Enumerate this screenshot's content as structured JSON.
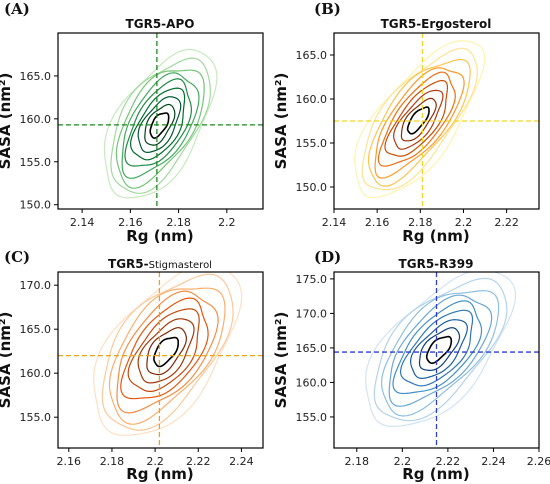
{
  "chart_data": [
    {
      "type": "contour",
      "panel_label": "(A)",
      "title": "TGR5-APO",
      "xlabel": "Rg (nm)",
      "ylabel": "SASA (nm²)",
      "xlim": [
        2.13,
        2.215
      ],
      "ylim": [
        149.5,
        170.0
      ],
      "xticks": [
        2.14,
        2.16,
        2.18,
        2.2
      ],
      "xtick_labels": [
        "2.14",
        "2.16",
        "2.18",
        "2.2"
      ],
      "yticks": [
        150.0,
        155.0,
        160.0,
        165.0
      ],
      "ytick_labels": [
        "150.0",
        "155.0",
        "160.0",
        "165.0"
      ],
      "peak": {
        "x": 2.172,
        "y": 159.3
      },
      "ref_lines": {
        "x": 2.171,
        "y": 159.3
      },
      "spread": {
        "x": 0.0085,
        "y": 3.2
      },
      "correlation": 0.55,
      "contour_levels": 9,
      "colors": [
        "#c7e9c0",
        "#a1d99b",
        "#74c476",
        "#41ab5d",
        "#238b45",
        "#006d2c",
        "#005a32",
        "#00441b",
        "#000000"
      ],
      "ref_line_color": "#1a8a1a"
    },
    {
      "type": "contour",
      "panel_label": "(B)",
      "title": "TGR5-Ergosterol",
      "xlabel": "Rg (nm)",
      "ylabel": "SASA (nm²)",
      "xlim": [
        2.14,
        2.235
      ],
      "ylim": [
        147.5,
        167.5
      ],
      "xticks": [
        2.14,
        2.16,
        2.18,
        2.2,
        2.22
      ],
      "xtick_labels": [
        "2.14",
        "2.16",
        "2.18",
        "2.2",
        "2.22"
      ],
      "yticks": [
        150.0,
        155.0,
        160.0,
        165.0
      ],
      "ytick_labels": [
        "150.0",
        "155.0",
        "160.0",
        "165.0"
      ],
      "peak": {
        "x": 2.179,
        "y": 157.6
      },
      "ref_lines": {
        "x": 2.181,
        "y": 157.5
      },
      "spread": {
        "x": 0.011,
        "y": 3.3
      },
      "correlation": 0.7,
      "contour_levels": 9,
      "colors": [
        "#fff3b0",
        "#fee391",
        "#fec44f",
        "#fe9929",
        "#ec7014",
        "#cc4c02",
        "#b03a12",
        "#8c2d04",
        "#000000"
      ],
      "ref_line_color": "#f2d32a"
    },
    {
      "type": "contour",
      "panel_label": "(C)",
      "title_prefix": "TGR5-",
      "title_suffix": "Stigmasterol",
      "xlabel": "Rg (nm)",
      "ylabel": "SASA (nm²)",
      "xlim": [
        2.155,
        2.25
      ],
      "ylim": [
        151.5,
        171.5
      ],
      "xticks": [
        2.16,
        2.18,
        2.2,
        2.22,
        2.24
      ],
      "xtick_labels": [
        "2.16",
        "2.18",
        "2.2",
        "2.22",
        "2.24"
      ],
      "yticks": [
        155.0,
        160.0,
        165.0,
        170.0
      ],
      "ytick_labels": [
        "155.0",
        "160.0",
        "165.0",
        "170.0"
      ],
      "peak": {
        "x": 2.205,
        "y": 162.5
      },
      "ref_lines": {
        "x": 2.202,
        "y": 162.0
      },
      "spread": {
        "x": 0.0125,
        "y": 3.6
      },
      "correlation": 0.55,
      "contour_levels": 9,
      "colors": [
        "#fde0c5",
        "#fdc89a",
        "#fdae6b",
        "#f68d45",
        "#e6550d",
        "#c44a0c",
        "#a63603",
        "#7f2704",
        "#000000"
      ],
      "ref_line_color": "#e8a21e"
    },
    {
      "type": "contour",
      "panel_label": "(D)",
      "title": "TGR5-R399",
      "xlabel": "Rg (nm)",
      "ylabel": "SASA (nm²)",
      "xlim": [
        2.17,
        2.26
      ],
      "ylim": [
        150.5,
        176.0
      ],
      "xticks": [
        2.18,
        2.2,
        2.22,
        2.24,
        2.26
      ],
      "xtick_labels": [
        "2.18",
        "2.2",
        "2.22",
        "2.24",
        "2.26"
      ],
      "yticks": [
        155.0,
        160.0,
        165.0,
        170.0,
        175.0
      ],
      "ytick_labels": [
        "155.0",
        "160.0",
        "165.0",
        "170.0",
        "175.0"
      ],
      "peak": {
        "x": 2.216,
        "y": 164.8
      },
      "ref_lines": {
        "x": 2.215,
        "y": 164.4
      },
      "spread": {
        "x": 0.012,
        "y": 4.2
      },
      "correlation": 0.6,
      "contour_levels": 9,
      "colors": [
        "#d2e4f3",
        "#b3d3ea",
        "#8fbfdf",
        "#6aa8d3",
        "#4390c4",
        "#2c77b5",
        "#1c5e9c",
        "#0f3f78",
        "#000000"
      ],
      "ref_line_color": "#2e3fd0"
    }
  ]
}
